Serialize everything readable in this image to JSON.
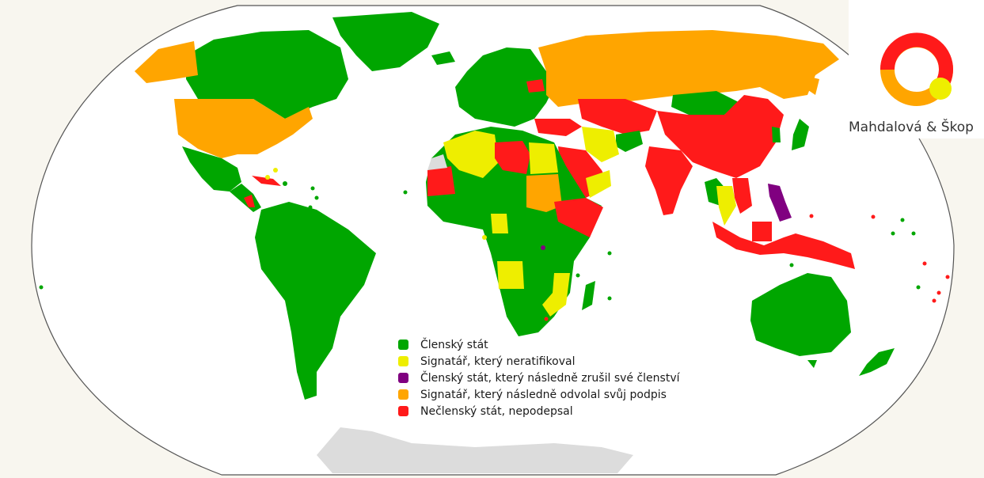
{
  "legend": {
    "items": [
      {
        "label": "Členský stát",
        "color": "#00a600"
      },
      {
        "label": "Signatář, který neratifikoval",
        "color": "#eeee00"
      },
      {
        "label": "Členský stát, který následně zrušil své členství",
        "color": "#800080"
      },
      {
        "label": "Signatář, který následně odvolal svůj podpis",
        "color": "#ffa500"
      },
      {
        "label": "Nečlenský stát, nepodepsal",
        "color": "#ff1a1a"
      }
    ]
  },
  "watermark": {
    "text": "Mahdalová & Škop",
    "logo_colors": [
      "#ff1a1a",
      "#ffa500",
      "#eeee00"
    ]
  },
  "colors": {
    "ocean": "#ffffff",
    "background": "#f8f6ef",
    "antarctica": "#dcdcdc",
    "outline": "#555555"
  }
}
